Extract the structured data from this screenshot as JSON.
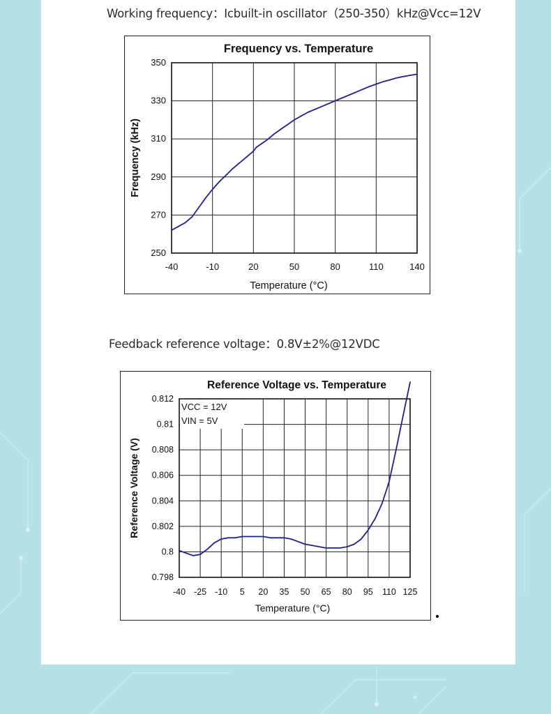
{
  "captions": {
    "working_frequency": "Working frequency：Icbuilt-in oscillator（250-350）kHz@Vcc=12V",
    "feedback_voltage": "Feedback reference voltage：0.8V±2%@12VDC"
  },
  "colors": {
    "background": "#b5e1e6",
    "panel": "#ffffff",
    "curve": "#1f1f8f",
    "grid": "#222222"
  },
  "chart_data": [
    {
      "type": "line",
      "title": "Frequency vs. Temperature",
      "xlabel": "Temperature (°C)",
      "ylabel": "Frequency (kHz)",
      "xlim": [
        -40,
        140
      ],
      "ylim": [
        250,
        350
      ],
      "xticks": [
        -40,
        -10,
        20,
        50,
        80,
        110,
        140
      ],
      "yticks": [
        250,
        270,
        290,
        310,
        330,
        350
      ],
      "xtick_labels": [
        "-40",
        "-10",
        "20",
        "50",
        "80",
        "110",
        "140"
      ],
      "ytick_labels": [
        "250",
        "270",
        "290",
        "310",
        "330",
        "350"
      ],
      "grid": true,
      "series": [
        {
          "x": [
            -40,
            -35,
            -30,
            -25,
            -20,
            -15,
            -10,
            -5,
            0,
            5,
            10,
            15,
            20,
            22,
            25,
            30,
            35,
            40,
            45,
            50,
            55,
            60,
            65,
            70,
            75,
            80,
            85,
            90,
            95,
            100,
            105,
            110,
            115,
            120,
            125,
            130,
            135,
            140
          ],
          "y": [
            262,
            264,
            266,
            269,
            274,
            279,
            283.5,
            287.5,
            291,
            294.5,
            297.5,
            300.5,
            303.5,
            305.5,
            307,
            309.5,
            312.5,
            315,
            317.5,
            320,
            322,
            324,
            325.5,
            327,
            328.5,
            330,
            331.5,
            333,
            334.5,
            336,
            337.5,
            338.8,
            340,
            341,
            342,
            342.8,
            343.4,
            344
          ]
        }
      ]
    },
    {
      "type": "line",
      "title": "Reference Voltage vs. Temperature",
      "xlabel": "Temperature (°C)",
      "ylabel": "Reference Voltage (V)",
      "xlim": [
        -40,
        125
      ],
      "ylim": [
        0.798,
        0.812
      ],
      "xticks": [
        -40,
        -25,
        -10,
        5,
        20,
        35,
        50,
        65,
        80,
        95,
        110,
        125
      ],
      "yticks": [
        0.798,
        0.8,
        0.802,
        0.804,
        0.806,
        0.808,
        0.81,
        0.812
      ],
      "xtick_labels": [
        "-40",
        "-25",
        "-10",
        "5",
        "20",
        "35",
        "50",
        "65",
        "80",
        "95",
        "110",
        "125"
      ],
      "ytick_labels": [
        "0.798",
        "0.8",
        "0.802",
        "0.804",
        "0.806",
        "0.808",
        "0.81",
        "0.812"
      ],
      "grid": true,
      "annotations": [
        "VCC = 12V",
        "VIN = 5V"
      ],
      "series": [
        {
          "x": [
            -40,
            -35,
            -30,
            -25,
            -20,
            -15,
            -10,
            -5,
            0,
            5,
            10,
            15,
            20,
            25,
            30,
            35,
            40,
            45,
            50,
            55,
            60,
            65,
            70,
            75,
            80,
            85,
            90,
            95,
            100,
            105,
            110,
            115,
            120,
            125
          ],
          "y": [
            0.8001,
            0.7999,
            0.7997,
            0.7998,
            0.8002,
            0.8007,
            0.801,
            0.8011,
            0.8011,
            0.8012,
            0.8012,
            0.8012,
            0.8012,
            0.8011,
            0.8011,
            0.8011,
            0.801,
            0.8008,
            0.8006,
            0.8005,
            0.8004,
            0.8003,
            0.8003,
            0.8003,
            0.8004,
            0.8006,
            0.801,
            0.8017,
            0.8026,
            0.8038,
            0.8055,
            0.808,
            0.8107,
            0.8133
          ]
        }
      ]
    }
  ]
}
